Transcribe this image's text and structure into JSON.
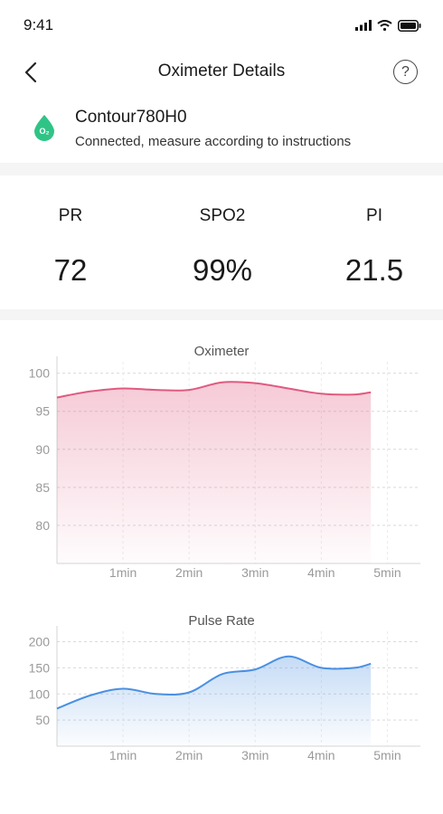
{
  "status_bar": {
    "time": "9:41"
  },
  "nav": {
    "title": "Oximeter Details",
    "help_label": "?"
  },
  "device": {
    "name": "Contour780H0",
    "status": "Connected, measure according to instructions",
    "icon_label": "O₂",
    "icon_color": "#2fc486"
  },
  "metrics": [
    {
      "label": "PR",
      "value": "72"
    },
    {
      "label": "SPO2",
      "value": "99%"
    },
    {
      "label": "PI",
      "value": "21.5"
    }
  ],
  "chart_data": [
    {
      "type": "area",
      "title": "Oximeter",
      "xlabel": "",
      "ylabel": "",
      "x_tick_labels": [
        "1min",
        "2min",
        "3min",
        "4min",
        "5min"
      ],
      "x_ticks": [
        1,
        2,
        3,
        4,
        5
      ],
      "xlim": [
        0,
        5.5
      ],
      "y_ticks": [
        80,
        85,
        90,
        95,
        100
      ],
      "ylim": [
        75,
        101.5
      ],
      "grid": true,
      "color": "#e05a80",
      "series": [
        {
          "x": [
            0,
            0.5,
            1,
            1.5,
            2,
            2.5,
            3,
            3.5,
            4,
            4.5,
            4.75
          ],
          "y": [
            96.8,
            97.6,
            98,
            97.8,
            97.8,
            98.8,
            98.7,
            98,
            97.3,
            97.2,
            97.5
          ]
        }
      ]
    },
    {
      "type": "area",
      "title": "Pulse Rate",
      "xlabel": "",
      "ylabel": "",
      "x_tick_labels": [
        "1min",
        "2min",
        "3min",
        "4min",
        "5min"
      ],
      "x_ticks": [
        1,
        2,
        3,
        4,
        5
      ],
      "xlim": [
        0,
        5.5
      ],
      "y_ticks": [
        50,
        100,
        150,
        200
      ],
      "ylim": [
        0,
        220
      ],
      "grid": true,
      "color": "#4a90e2",
      "series": [
        {
          "x": [
            0,
            0.5,
            1,
            1.5,
            2,
            2.5,
            3,
            3.5,
            4,
            4.5,
            4.75
          ],
          "y": [
            72,
            97,
            110,
            100,
            103,
            138,
            147,
            172,
            150,
            150,
            158
          ]
        }
      ]
    }
  ]
}
